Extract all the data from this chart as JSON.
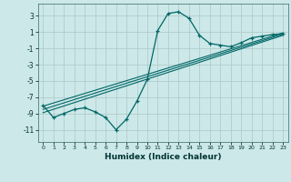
{
  "xlabel": "Humidex (Indice chaleur)",
  "ylabel": "",
  "bg_color": "#cce8e8",
  "grid_color": "#b0cccc",
  "line_color": "#006666",
  "xlim": [
    -0.5,
    23.5
  ],
  "ylim": [
    -12.5,
    4.5
  ],
  "yticks": [
    3,
    1,
    -1,
    -3,
    -5,
    -7,
    -9,
    -11
  ],
  "xticks": [
    0,
    1,
    2,
    3,
    4,
    5,
    6,
    7,
    8,
    9,
    10,
    11,
    12,
    13,
    14,
    15,
    16,
    17,
    18,
    19,
    20,
    21,
    22,
    23
  ],
  "curve1_x": [
    0,
    1,
    2,
    3,
    4,
    5,
    6,
    7,
    8,
    9,
    10,
    11,
    12,
    13,
    14,
    15,
    16,
    17,
    18,
    19,
    20,
    21,
    22,
    23
  ],
  "curve1_y": [
    -8.0,
    -9.5,
    -9.0,
    -8.5,
    -8.3,
    -8.8,
    -9.5,
    -11.0,
    -9.7,
    -7.5,
    -4.8,
    1.2,
    3.3,
    3.5,
    2.7,
    0.6,
    -0.4,
    -0.6,
    -0.8,
    -0.3,
    0.3,
    0.5,
    0.7,
    0.8
  ],
  "line1_x": [
    0,
    23
  ],
  "line1_y": [
    -8.5,
    0.75
  ],
  "line2_x": [
    0,
    23
  ],
  "line2_y": [
    -8.1,
    0.9
  ],
  "line3_x": [
    0,
    23
  ],
  "line3_y": [
    -8.9,
    0.6
  ]
}
